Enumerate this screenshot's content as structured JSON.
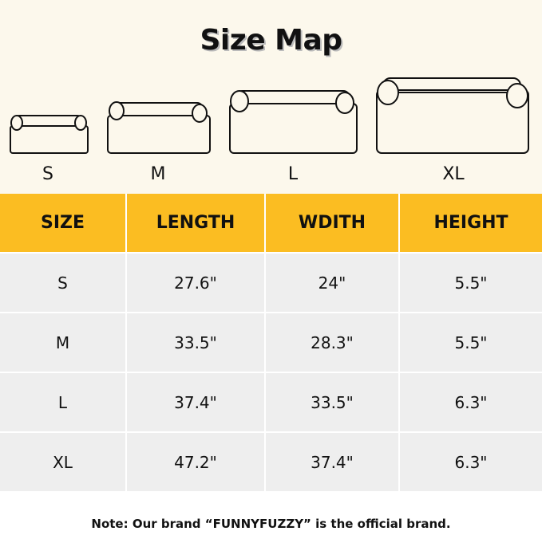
{
  "title": "Size Map",
  "bed_labels": [
    "S",
    "M",
    "L",
    "XL"
  ],
  "table": {
    "headers": [
      "SIZE",
      "LENGTH",
      "WDITH",
      "HEIGHT"
    ],
    "rows": [
      [
        "S",
        "27.6\"",
        "24\"",
        "5.5\""
      ],
      [
        "M",
        "33.5\"",
        "28.3\"",
        "5.5\""
      ],
      [
        "L",
        "37.4\"",
        "33.5\"",
        "6.3\""
      ],
      [
        "XL",
        "47.2\"",
        "37.4\"",
        "6.3\""
      ]
    ]
  },
  "note": "Note: Our brand “FUNNYFUZZY” is the official brand.",
  "colors": {
    "header": "#fbbd22",
    "background": "#fcf8ec",
    "row": "#eeeeee"
  }
}
